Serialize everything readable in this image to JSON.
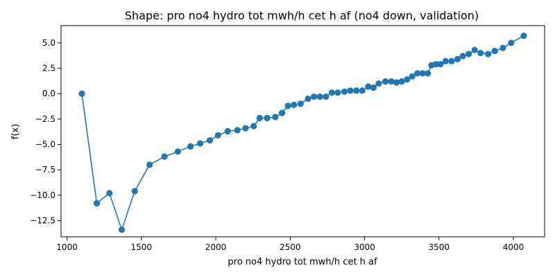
{
  "chart_data": {
    "type": "line",
    "title": "Shape: pro no4 hydro tot mwh/h cet h af (no4 down, validation)",
    "xlabel": "pro no4 hydro tot mwh/h cet h af",
    "ylabel": "f(x)",
    "xlim": [
      960,
      4210
    ],
    "ylim": [
      -14.1,
      6.7
    ],
    "xticks": [
      1000,
      1500,
      2000,
      2500,
      3000,
      3500,
      4000
    ],
    "yticks": [
      -12.5,
      -10.0,
      -7.5,
      -5.0,
      -2.5,
      0.0,
      2.5,
      5.0
    ],
    "xtick_labels": [
      "1000",
      "1500",
      "2000",
      "2500",
      "3000",
      "3500",
      "4000"
    ],
    "ytick_labels": [
      "−12.5",
      "−10.0",
      "−7.5",
      "−5.0",
      "−2.5",
      "0.0",
      "2.5",
      "5.0"
    ],
    "grid": false,
    "color": "#1f77b4",
    "series": [
      {
        "x": [
          1100,
          1200,
          1285,
          1368,
          1455,
          1555,
          1655,
          1745,
          1830,
          1895,
          1960,
          2015,
          2080,
          2145,
          2200,
          2255,
          2295,
          2345,
          2400,
          2445,
          2485,
          2525,
          2570,
          2620,
          2660,
          2700,
          2740,
          2780,
          2820,
          2865,
          2905,
          2945,
          2985,
          3025,
          3060,
          3095,
          3140,
          3180,
          3215,
          3250,
          3285,
          3320,
          3355,
          3390,
          3425,
          3450,
          3480,
          3510,
          3545,
          3585,
          3625,
          3660,
          3700,
          3740,
          3780,
          3830,
          3875,
          3930,
          3985,
          4070
        ],
        "y": [
          0.0,
          -10.8,
          -9.8,
          -13.4,
          -9.6,
          -7.0,
          -6.2,
          -5.7,
          -5.2,
          -4.9,
          -4.6,
          -4.1,
          -3.7,
          -3.6,
          -3.4,
          -3.2,
          -2.4,
          -2.4,
          -2.3,
          -1.9,
          -1.2,
          -1.1,
          -1.0,
          -0.5,
          -0.3,
          -0.3,
          -0.3,
          0.1,
          0.1,
          0.2,
          0.3,
          0.3,
          0.3,
          0.7,
          0.6,
          1.0,
          1.2,
          1.2,
          1.1,
          1.2,
          1.4,
          1.7,
          2.0,
          2.0,
          2.0,
          2.8,
          2.9,
          2.9,
          3.2,
          3.2,
          3.4,
          3.7,
          3.9,
          4.3,
          4.0,
          3.9,
          4.2,
          4.5,
          5.0,
          5.7
        ]
      }
    ]
  }
}
